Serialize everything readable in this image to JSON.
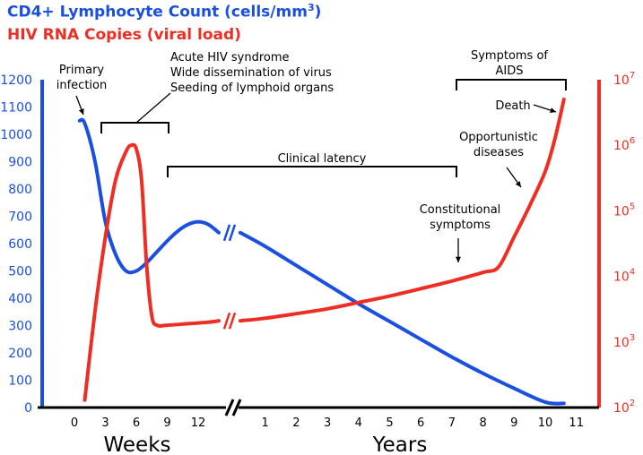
{
  "colors": {
    "cd4": "#1a4fe0",
    "rna": "#ee2e24",
    "axis": "#000000",
    "background": "#ffffff"
  },
  "legend": {
    "cd4": {
      "text": "CD4+ Lymphocyte Count (cells/mm",
      "sup": "3",
      "close": ")"
    },
    "rna": {
      "text": "HIV RNA Copies (viral load)"
    }
  },
  "chart_data": {
    "type": "line",
    "title": "",
    "xlabel_left": "Weeks",
    "xlabel_right": "Years",
    "x_ticks_weeks": [
      "0",
      "3",
      "6",
      "9",
      "12"
    ],
    "x_ticks_years": [
      "1",
      "2",
      "3",
      "4",
      "5",
      "6",
      "7",
      "8",
      "9",
      "10",
      "11"
    ],
    "y_left": {
      "label": "CD4+ Lymphocyte Count (cells/mm3)",
      "range": [
        0,
        1200
      ],
      "ticks": [
        "0",
        "100",
        "200",
        "300",
        "400",
        "500",
        "600",
        "700",
        "800",
        "900",
        "1000",
        "1100",
        "1200"
      ]
    },
    "y_right": {
      "label": "HIV RNA Copies (viral load)",
      "scale": "log",
      "range": [
        100,
        10000000
      ],
      "ticks": [
        {
          "base": "10",
          "exp": "2"
        },
        {
          "base": "10",
          "exp": "3"
        },
        {
          "base": "10",
          "exp": "4"
        },
        {
          "base": "10",
          "exp": "5"
        },
        {
          "base": "10",
          "exp": "6"
        },
        {
          "base": "10",
          "exp": "7"
        }
      ]
    },
    "series": [
      {
        "name": "CD4+ Lymphocyte Count (cells/mm3)",
        "axis": "left",
        "weeks": [
          [
            0.5,
            1050
          ],
          [
            1,
            1040
          ],
          [
            2,
            900
          ],
          [
            3,
            680
          ],
          [
            4,
            560
          ],
          [
            5,
            500
          ],
          [
            6,
            500
          ],
          [
            7,
            530
          ],
          [
            8,
            570
          ],
          [
            9,
            610
          ],
          [
            10,
            645
          ],
          [
            11,
            670
          ],
          [
            12,
            680
          ],
          [
            13,
            670
          ],
          [
            14,
            640
          ]
        ],
        "years": [
          [
            0.2,
            640
          ],
          [
            1,
            590
          ],
          [
            2,
            520
          ],
          [
            3,
            450
          ],
          [
            4,
            380
          ],
          [
            5,
            315
          ],
          [
            6,
            250
          ],
          [
            7,
            185
          ],
          [
            8,
            125
          ],
          [
            9,
            70
          ],
          [
            10,
            20
          ],
          [
            10.6,
            15
          ]
        ]
      },
      {
        "name": "HIV RNA Copies (viral load)",
        "axis": "right",
        "weeks": [
          [
            1,
            130
          ],
          [
            2,
            3000
          ],
          [
            3,
            40000
          ],
          [
            4,
            300000
          ],
          [
            5,
            800000
          ],
          [
            5.5,
            1000000
          ],
          [
            6,
            880000
          ],
          [
            6.5,
            300000
          ],
          [
            7,
            15000
          ],
          [
            7.5,
            2500
          ],
          [
            8,
            1800
          ],
          [
            9,
            1800
          ],
          [
            11,
            1900
          ],
          [
            13,
            2000
          ],
          [
            14,
            2100
          ]
        ],
        "years": [
          [
            0.2,
            2100
          ],
          [
            1,
            2300
          ],
          [
            2,
            2700
          ],
          [
            3,
            3200
          ],
          [
            4,
            4000
          ],
          [
            5,
            5000
          ],
          [
            6,
            6500
          ],
          [
            7,
            8500
          ],
          [
            8,
            11500
          ],
          [
            8.5,
            14000
          ],
          [
            9,
            40000
          ],
          [
            9.5,
            120000
          ],
          [
            10,
            400000
          ],
          [
            10.3,
            1200000
          ],
          [
            10.6,
            5000000
          ]
        ]
      }
    ],
    "annotations": {
      "primary_infection": [
        "Primary",
        "infection"
      ],
      "acute": [
        "Acute HIV syndrome",
        "Wide dissemination of virus",
        "Seeding of lymphoid organs"
      ],
      "clinical_latency": "Clinical latency",
      "symptoms_aids": [
        "Symptoms of",
        "AIDS"
      ],
      "death": "Death",
      "opportunistic": [
        "Opportunistic",
        "diseases"
      ],
      "constitutional": [
        "Constitutional",
        "symptoms"
      ]
    },
    "grid": false,
    "legend_position": "top-left"
  }
}
